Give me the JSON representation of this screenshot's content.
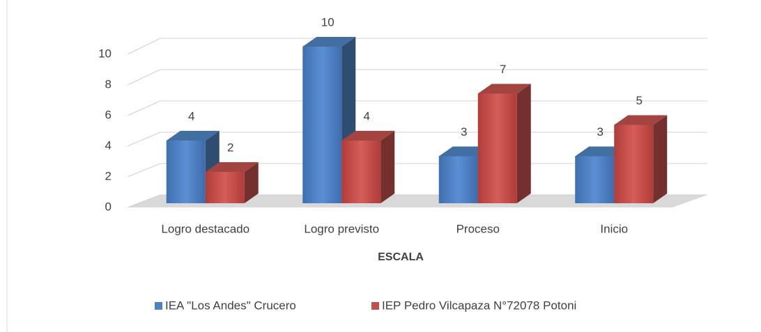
{
  "chart_data": {
    "type": "bar3d",
    "x_label": "ESCALA",
    "categories": [
      "Logro destacado",
      "Logro previsto",
      "Proceso",
      "Inicio"
    ],
    "series": [
      {
        "name": "IEA \"Los Andes\" Crucero",
        "color": "#4f81bd",
        "values": [
          4,
          10,
          3,
          3
        ]
      },
      {
        "name": "IEP Pedro Vilcapaza N°72078 Potoni",
        "color": "#c0504d",
        "values": [
          2,
          4,
          7,
          5
        ]
      }
    ],
    "ylim": [
      0,
      10
    ],
    "yticks": [
      0,
      2,
      4,
      6,
      8,
      10
    ],
    "grid": true,
    "legend": "bottom"
  }
}
